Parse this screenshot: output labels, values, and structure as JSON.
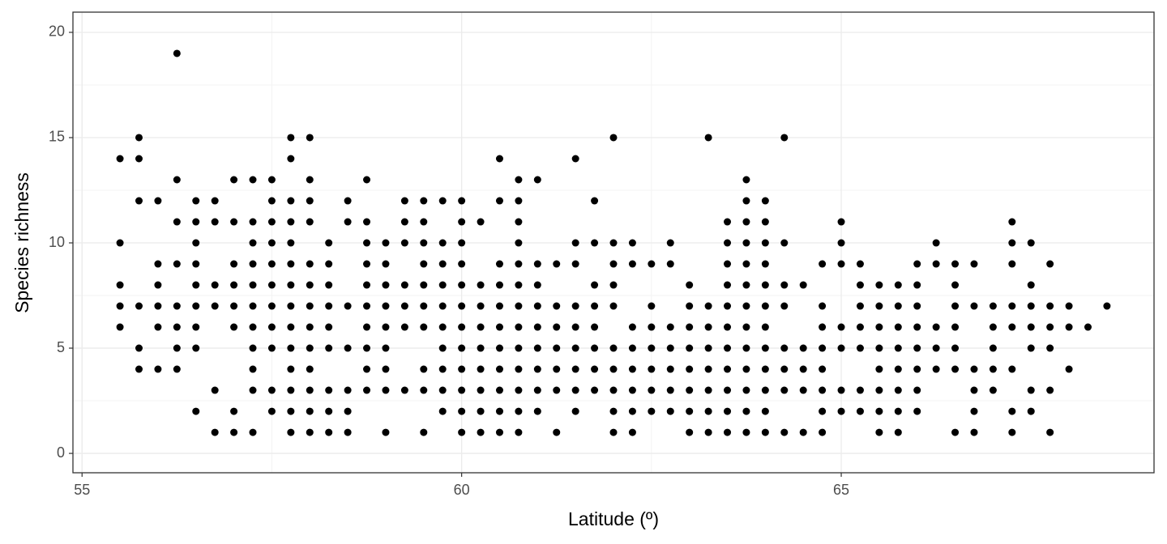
{
  "chart_data": {
    "type": "scatter",
    "x_label": "Latitude (º)",
    "y_label": "Species richness",
    "color": "#000000",
    "grid": true,
    "xlim": [
      54.88,
      69.12
    ],
    "ylim": [
      -0.92,
      20.96
    ],
    "xticks": [
      55,
      60,
      65
    ],
    "yticks": [
      0,
      5,
      10,
      15,
      20
    ],
    "x": [
      55.5,
      55.5,
      55.5,
      55.5,
      55.5,
      55.75,
      55.75,
      55.75,
      55.75,
      55.75,
      55.75,
      56,
      56,
      56,
      56,
      56,
      56,
      56.25,
      56.25,
      56.25,
      56.25,
      56.25,
      56.25,
      56.25,
      56.25,
      56.5,
      56.5,
      56.5,
      56.5,
      56.5,
      56.5,
      56.5,
      56.5,
      56.5,
      56.75,
      56.75,
      56.75,
      56.75,
      56.75,
      56.75,
      57,
      57,
      57,
      57,
      57,
      57,
      57,
      57,
      57.25,
      57.25,
      57.25,
      57.25,
      57.25,
      57.25,
      57.25,
      57.25,
      57.25,
      57.25,
      57.25,
      57.5,
      57.5,
      57.5,
      57.5,
      57.5,
      57.5,
      57.5,
      57.5,
      57.5,
      57.5,
      57.5,
      57.75,
      57.75,
      57.75,
      57.75,
      57.75,
      57.75,
      57.75,
      57.75,
      57.75,
      57.75,
      57.75,
      57.75,
      57.75,
      57.75,
      58,
      58,
      58,
      58,
      58,
      58,
      58,
      58,
      58,
      58,
      58,
      58,
      58,
      58.25,
      58.25,
      58.25,
      58.25,
      58.25,
      58.25,
      58.25,
      58.25,
      58.25,
      58.5,
      58.5,
      58.5,
      58.5,
      58.5,
      58.5,
      58.5,
      58.75,
      58.75,
      58.75,
      58.75,
      58.75,
      58.75,
      58.75,
      58.75,
      58.75,
      58.75,
      59,
      59,
      59,
      59,
      59,
      59,
      59,
      59,
      59,
      59.25,
      59.25,
      59.25,
      59.25,
      59.25,
      59.25,
      59.25,
      59.5,
      59.5,
      59.5,
      59.5,
      59.5,
      59.5,
      59.5,
      59.5,
      59.5,
      59.5,
      59.75,
      59.75,
      59.75,
      59.75,
      59.75,
      59.75,
      59.75,
      59.75,
      59.75,
      59.75,
      60,
      60,
      60,
      60,
      60,
      60,
      60,
      60,
      60,
      60,
      60,
      60,
      60.25,
      60.25,
      60.25,
      60.25,
      60.25,
      60.25,
      60.25,
      60.25,
      60.25,
      60.5,
      60.5,
      60.5,
      60.5,
      60.5,
      60.5,
      60.5,
      60.5,
      60.5,
      60.5,
      60.5,
      60.75,
      60.75,
      60.75,
      60.75,
      60.75,
      60.75,
      60.75,
      60.75,
      60.75,
      60.75,
      60.75,
      60.75,
      60.75,
      61,
      61,
      61,
      61,
      61,
      61,
      61,
      61,
      61,
      61.25,
      61.25,
      61.25,
      61.25,
      61.25,
      61.25,
      61.25,
      61.5,
      61.5,
      61.5,
      61.5,
      61.5,
      61.5,
      61.5,
      61.5,
      61.5,
      61.75,
      61.75,
      61.75,
      61.75,
      61.75,
      61.75,
      61.75,
      61.75,
      62,
      62,
      62,
      62,
      62,
      62,
      62,
      62,
      62,
      62,
      62.25,
      62.25,
      62.25,
      62.25,
      62.25,
      62.25,
      62.25,
      62.25,
      62.5,
      62.5,
      62.5,
      62.5,
      62.5,
      62.5,
      62.5,
      62.75,
      62.75,
      62.75,
      62.75,
      62.75,
      62.75,
      62.75,
      63,
      63,
      63,
      63,
      63,
      63,
      63,
      63,
      63.25,
      63.25,
      63.25,
      63.25,
      63.25,
      63.25,
      63.25,
      63.25,
      63.5,
      63.5,
      63.5,
      63.5,
      63.5,
      63.5,
      63.5,
      63.5,
      63.5,
      63.5,
      63.5,
      63.75,
      63.75,
      63.75,
      63.75,
      63.75,
      63.75,
      63.75,
      63.75,
      63.75,
      63.75,
      63.75,
      63.75,
      63.75,
      64,
      64,
      64,
      64,
      64,
      64,
      64,
      64,
      64,
      64,
      64,
      64,
      64.25,
      64.25,
      64.25,
      64.25,
      64.25,
      64.25,
      64.25,
      64.25,
      64.5,
      64.5,
      64.5,
      64.5,
      64.5,
      64.75,
      64.75,
      64.75,
      64.75,
      64.75,
      64.75,
      64.75,
      64.75,
      65,
      65,
      65,
      65,
      65,
      65,
      65,
      65.25,
      65.25,
      65.25,
      65.25,
      65.25,
      65.25,
      65.25,
      65.5,
      65.5,
      65.5,
      65.5,
      65.5,
      65.5,
      65.5,
      65.5,
      65.75,
      65.75,
      65.75,
      65.75,
      65.75,
      65.75,
      65.75,
      65.75,
      66,
      66,
      66,
      66,
      66,
      66,
      66,
      66,
      66.25,
      66.25,
      66.25,
      66.25,
      66.25,
      66.5,
      66.5,
      66.5,
      66.5,
      66.5,
      66.5,
      66.5,
      66.75,
      66.75,
      66.75,
      66.75,
      66.75,
      66.75,
      67,
      67,
      67,
      67,
      67,
      67.25,
      67.25,
      67.25,
      67.25,
      67.25,
      67.25,
      67.25,
      67.25,
      67.5,
      67.5,
      67.5,
      67.5,
      67.5,
      67.5,
      67.5,
      67.75,
      67.75,
      67.75,
      67.75,
      67.75,
      67.75,
      68,
      68,
      68,
      68.25,
      68.5
    ],
    "values": [
      14,
      10,
      8,
      7,
      6,
      15,
      14,
      12,
      7,
      5,
      4,
      12,
      9,
      8,
      7,
      6,
      4,
      19,
      13,
      11,
      9,
      7,
      6,
      5,
      4,
      12,
      11,
      10,
      9,
      8,
      7,
      6,
      5,
      2,
      12,
      11,
      8,
      7,
      3,
      1,
      13,
      11,
      9,
      8,
      7,
      6,
      2,
      1,
      13,
      11,
      10,
      9,
      8,
      7,
      6,
      5,
      4,
      3,
      1,
      13,
      12,
      11,
      10,
      9,
      8,
      7,
      6,
      5,
      3,
      2,
      15,
      14,
      12,
      11,
      10,
      9,
      8,
      7,
      6,
      5,
      4,
      3,
      2,
      1,
      15,
      13,
      12,
      11,
      9,
      8,
      7,
      6,
      5,
      4,
      3,
      2,
      1,
      10,
      9,
      8,
      7,
      6,
      5,
      3,
      2,
      1,
      12,
      11,
      7,
      5,
      3,
      2,
      1,
      13,
      11,
      10,
      9,
      8,
      7,
      6,
      5,
      4,
      3,
      10,
      9,
      8,
      7,
      6,
      5,
      4,
      3,
      1,
      12,
      11,
      10,
      8,
      7,
      6,
      3,
      12,
      11,
      10,
      9,
      8,
      7,
      6,
      4,
      3,
      1,
      12,
      10,
      9,
      8,
      7,
      6,
      5,
      4,
      3,
      2,
      12,
      11,
      10,
      9,
      8,
      7,
      6,
      5,
      4,
      3,
      2,
      1,
      11,
      8,
      7,
      6,
      5,
      4,
      3,
      2,
      1,
      14,
      12,
      9,
      8,
      7,
      6,
      5,
      4,
      3,
      2,
      1,
      13,
      12,
      11,
      10,
      9,
      8,
      7,
      6,
      5,
      4,
      3,
      2,
      1,
      13,
      9,
      8,
      7,
      6,
      5,
      4,
      3,
      2,
      9,
      7,
      6,
      5,
      4,
      3,
      1,
      14,
      10,
      9,
      7,
      6,
      5,
      4,
      3,
      2,
      12,
      10,
      8,
      7,
      6,
      5,
      4,
      3,
      15,
      10,
      9,
      8,
      7,
      5,
      4,
      3,
      2,
      1,
      10,
      9,
      6,
      5,
      4,
      3,
      2,
      1,
      9,
      7,
      6,
      5,
      4,
      3,
      2,
      10,
      9,
      6,
      5,
      4,
      3,
      2,
      8,
      7,
      6,
      5,
      4,
      3,
      2,
      1,
      15,
      7,
      6,
      5,
      4,
      3,
      2,
      1,
      11,
      10,
      9,
      8,
      7,
      6,
      5,
      4,
      3,
      2,
      1,
      13,
      12,
      11,
      10,
      9,
      8,
      7,
      6,
      5,
      4,
      3,
      2,
      1,
      12,
      11,
      10,
      9,
      8,
      7,
      6,
      5,
      4,
      3,
      2,
      1,
      15,
      10,
      8,
      7,
      5,
      4,
      3,
      1,
      8,
      5,
      4,
      3,
      1,
      9,
      7,
      6,
      5,
      4,
      3,
      2,
      1,
      11,
      10,
      9,
      6,
      5,
      3,
      2,
      9,
      8,
      7,
      6,
      5,
      3,
      2,
      8,
      7,
      6,
      5,
      4,
      3,
      2,
      1,
      8,
      7,
      6,
      5,
      4,
      3,
      2,
      1,
      9,
      8,
      7,
      6,
      5,
      4,
      3,
      2,
      10,
      9,
      6,
      5,
      4,
      9,
      8,
      7,
      6,
      5,
      4,
      1,
      9,
      7,
      4,
      3,
      2,
      1,
      7,
      6,
      5,
      4,
      3,
      11,
      10,
      9,
      7,
      6,
      4,
      2,
      1,
      10,
      8,
      7,
      6,
      5,
      3,
      2,
      9,
      7,
      6,
      5,
      3,
      1,
      7,
      6,
      4,
      6,
      7
    ]
  }
}
